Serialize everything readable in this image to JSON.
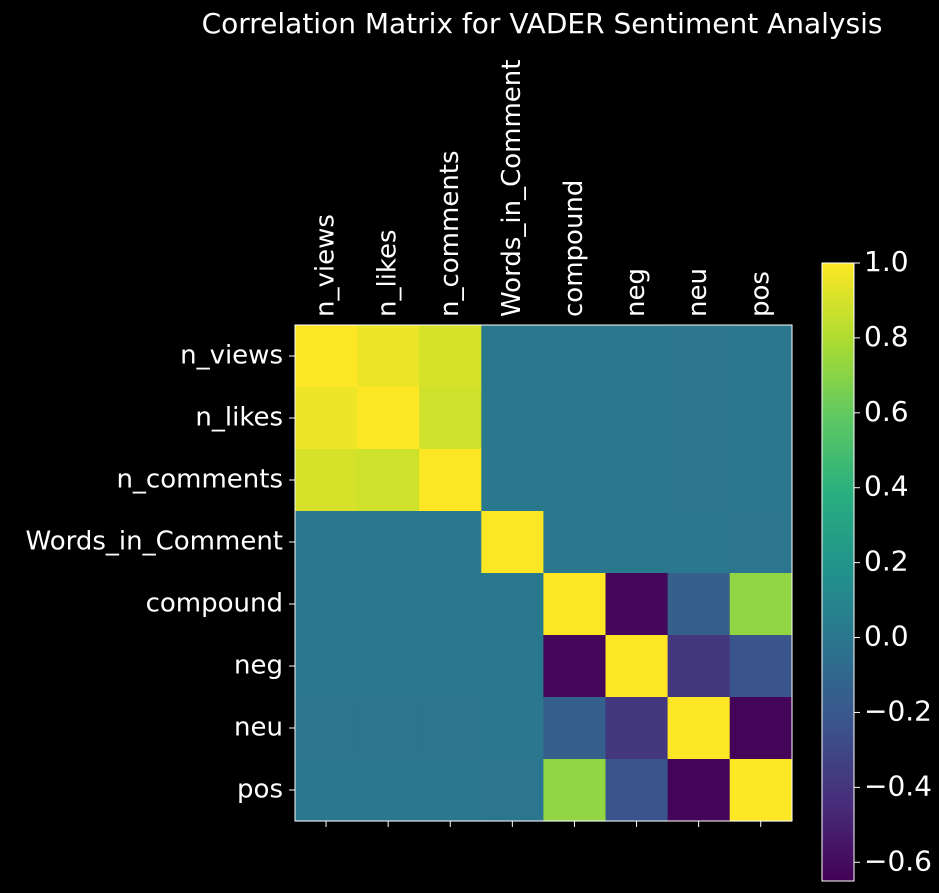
{
  "chart_data": {
    "type": "heatmap",
    "title": "Correlation Matrix for VADER Sentiment Analysis",
    "xlabel": "",
    "ylabel": "",
    "labels": [
      "n_views",
      "n_likes",
      "n_comments",
      "Words_in_Comment",
      "compound",
      "neg",
      "neu",
      "pos"
    ],
    "matrix": [
      [
        1.0,
        0.96,
        0.9,
        0.01,
        0.0,
        0.0,
        -0.01,
        0.0
      ],
      [
        0.96,
        1.0,
        0.88,
        0.01,
        0.0,
        0.0,
        -0.01,
        0.0
      ],
      [
        0.9,
        0.88,
        1.0,
        0.01,
        0.0,
        0.0,
        -0.01,
        0.0
      ],
      [
        0.01,
        0.01,
        0.01,
        1.0,
        0.01,
        0.01,
        0.0,
        -0.01
      ],
      [
        0.0,
        0.0,
        0.0,
        0.01,
        1.0,
        -0.62,
        -0.15,
        0.72
      ],
      [
        0.0,
        0.0,
        0.0,
        0.01,
        -0.62,
        1.0,
        -0.38,
        -0.22
      ],
      [
        -0.01,
        -0.01,
        -0.01,
        0.0,
        -0.15,
        -0.38,
        1.0,
        -0.63
      ],
      [
        0.0,
        0.0,
        0.0,
        -0.01,
        0.72,
        -0.22,
        -0.63,
        1.0
      ]
    ],
    "colormap": "viridis",
    "vmin": -0.65,
    "vmax": 1.0,
    "colorbar": {
      "ticks": [
        1.0,
        0.8,
        0.6,
        0.4,
        0.2,
        0.0,
        -0.2,
        -0.4,
        -0.6
      ],
      "tick_labels": [
        "1.0",
        "0.8",
        "0.6",
        "0.4",
        "0.2",
        "0.0",
        "−0.2",
        "−0.4",
        "−0.6"
      ]
    },
    "background": "#000000",
    "text_color": "#ffffff"
  }
}
